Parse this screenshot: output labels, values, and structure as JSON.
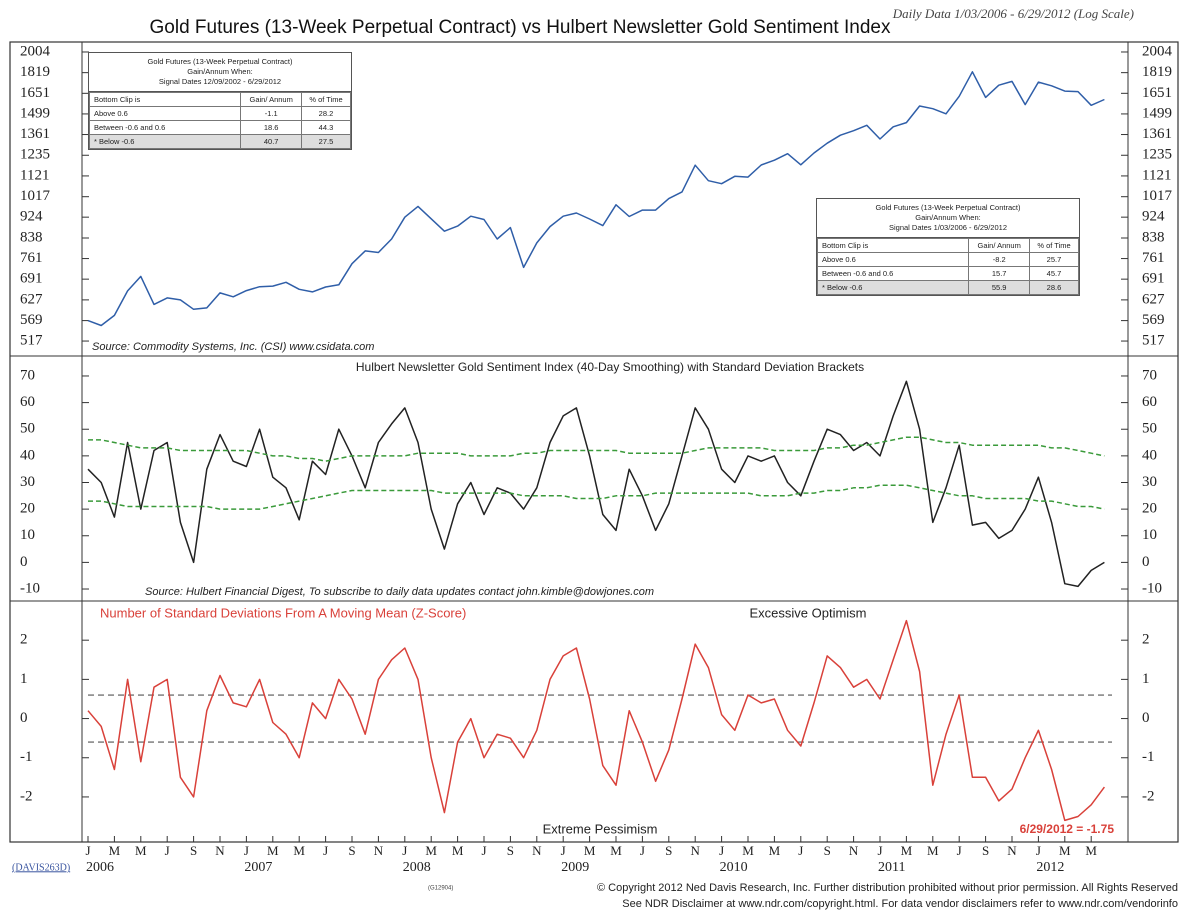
{
  "chart_data": [
    {
      "type": "line",
      "title": "Gold Futures (13-Week Perpetual Contract) vs Hulbert Newsletter Gold Sentiment Index",
      "subtitle": "Daily Data 1/03/2006 - 6/29/2012 (Log Scale)",
      "source": "Source: Commodity Systems, Inc. (CSI) www.csidata.com",
      "log_scale": true,
      "x": [
        "2006-01",
        "2006-02",
        "2006-03",
        "2006-04",
        "2006-05",
        "2006-06",
        "2006-07",
        "2006-08",
        "2006-09",
        "2006-10",
        "2006-11",
        "2006-12",
        "2007-01",
        "2007-02",
        "2007-03",
        "2007-04",
        "2007-05",
        "2007-06",
        "2007-07",
        "2007-08",
        "2007-09",
        "2007-10",
        "2007-11",
        "2007-12",
        "2008-01",
        "2008-02",
        "2008-03",
        "2008-04",
        "2008-05",
        "2008-06",
        "2008-07",
        "2008-08",
        "2008-09",
        "2008-10",
        "2008-11",
        "2008-12",
        "2009-01",
        "2009-02",
        "2009-03",
        "2009-04",
        "2009-05",
        "2009-06",
        "2009-07",
        "2009-08",
        "2009-09",
        "2009-10",
        "2009-11",
        "2009-12",
        "2010-01",
        "2010-02",
        "2010-03",
        "2010-04",
        "2010-05",
        "2010-06",
        "2010-07",
        "2010-08",
        "2010-09",
        "2010-10",
        "2010-11",
        "2010-12",
        "2011-01",
        "2011-02",
        "2011-03",
        "2011-04",
        "2011-05",
        "2011-06",
        "2011-07",
        "2011-08",
        "2011-09",
        "2011-10",
        "2011-11",
        "2011-12",
        "2012-01",
        "2012-02",
        "2012-03",
        "2012-04",
        "2012-05",
        "2012-06"
      ],
      "ylim": [
        482,
        2100
      ],
      "yticks": [
        517,
        569,
        627,
        691,
        761,
        838,
        924,
        1017,
        1121,
        1235,
        1361,
        1499,
        1651,
        1819,
        2004
      ],
      "series": [
        {
          "color": "#2f5ea8",
          "values": [
            569,
            556,
            583,
            654,
            700,
            614,
            633,
            627,
            600,
            604,
            648,
            636,
            655,
            667,
            669,
            681,
            659,
            651,
            666,
            673,
            743,
            789,
            783,
            834,
            924,
            972,
            917,
            865,
            886,
            928,
            914,
            834,
            880,
            730,
            819,
            884,
            928,
            942,
            916,
            888,
            979,
            927,
            955,
            955,
            1008,
            1040,
            1179,
            1096,
            1081,
            1119,
            1115,
            1180,
            1207,
            1244,
            1181,
            1248,
            1307,
            1357,
            1386,
            1421,
            1333,
            1411,
            1439,
            1556,
            1536,
            1500,
            1628,
            1826,
            1620,
            1715,
            1746,
            1566,
            1740,
            1710,
            1668,
            1664,
            1561,
            1604
          ]
        }
      ],
      "tables": [
        {
          "heading": [
            "Gold Futures (13-Week Perpetual Contract)",
            "Gain/Annum When:",
            "Signal Dates 12/09/2002 - 6/29/2012"
          ],
          "columns": [
            "Bottom Clip is",
            "Gain/ Annum",
            "% of Time"
          ],
          "rows": [
            [
              "Above 0.6",
              "-1.1",
              "28.2"
            ],
            [
              "Between -0.6 and 0.6",
              "18.6",
              "44.3"
            ],
            [
              "* Below -0.6",
              "40.7",
              "27.5"
            ]
          ]
        },
        {
          "heading": [
            "Gold Futures (13-Week Perpetual Contract)",
            "Gain/Annum When:",
            "Signal Dates 1/03/2006 - 6/29/2012"
          ],
          "columns": [
            "Bottom Clip is",
            "Gain/ Annum",
            "% of Time"
          ],
          "rows": [
            [
              "Above 0.6",
              "-8.2",
              "25.7"
            ],
            [
              "Between -0.6 and 0.6",
              "15.7",
              "45.7"
            ],
            [
              "* Below -0.6",
              "55.9",
              "28.6"
            ]
          ]
        }
      ]
    },
    {
      "type": "line",
      "title": "Hulbert Newsletter Gold Sentiment Index (40-Day Smoothing) with Standard Deviation Brackets",
      "source": "Source: Hulbert Financial Digest, To subscribe to daily data updates contact john.kimble@dowjones.com",
      "ylim": [
        -14.5,
        77.5
      ],
      "yticks": [
        -10,
        0,
        10,
        20,
        30,
        40,
        50,
        60,
        70
      ],
      "series": [
        {
          "color": "#222222",
          "line_style": "solid",
          "values": [
            35,
            30,
            17,
            45,
            20,
            42,
            45,
            15,
            0,
            35,
            48,
            38,
            36,
            50,
            32,
            28,
            16,
            38,
            33,
            50,
            40,
            28,
            45,
            52,
            58,
            45,
            20,
            5,
            22,
            30,
            18,
            28,
            26,
            20,
            28,
            45,
            55,
            58,
            40,
            18,
            12,
            35,
            25,
            12,
            22,
            40,
            58,
            50,
            35,
            30,
            40,
            38,
            40,
            30,
            25,
            38,
            50,
            48,
            42,
            45,
            40,
            55,
            68,
            50,
            15,
            28,
            44,
            14,
            15,
            9,
            12,
            20,
            32,
            15,
            -8,
            -9,
            -3,
            0
          ]
        },
        {
          "color": "#3a9a3a",
          "line_style": "dashed",
          "values": [
            46,
            46,
            45,
            44,
            43,
            43,
            43,
            42,
            42,
            42,
            42,
            42,
            42,
            41,
            40,
            40,
            39,
            39,
            38,
            39,
            40,
            40,
            40,
            40,
            40,
            41,
            41,
            41,
            41,
            40,
            40,
            40,
            40,
            41,
            41,
            42,
            42,
            42,
            42,
            42,
            42,
            41,
            41,
            41,
            41,
            41,
            42,
            43,
            43,
            43,
            43,
            43,
            42,
            42,
            42,
            42,
            43,
            43,
            44,
            44,
            45,
            46,
            47,
            47,
            46,
            45,
            45,
            44,
            44,
            44,
            44,
            44,
            44,
            43,
            43,
            42,
            41,
            40
          ]
        },
        {
          "color": "#3a9a3a",
          "line_style": "dashed",
          "values": [
            23,
            23,
            22,
            21,
            21,
            21,
            21,
            21,
            21,
            21,
            20,
            20,
            20,
            20,
            21,
            22,
            23,
            24,
            25,
            26,
            27,
            27,
            27,
            27,
            27,
            27,
            27,
            26,
            26,
            26,
            26,
            26,
            26,
            25,
            25,
            25,
            25,
            24,
            24,
            24,
            25,
            25,
            25,
            26,
            26,
            26,
            26,
            26,
            26,
            26,
            26,
            25,
            25,
            25,
            26,
            26,
            27,
            27,
            28,
            28,
            29,
            29,
            29,
            28,
            27,
            26,
            25,
            25,
            24,
            24,
            24,
            24,
            23,
            23,
            22,
            21,
            21,
            20
          ]
        }
      ]
    },
    {
      "type": "line",
      "title": "Number of Standard Deviations From A Moving Mean (Z-Score)",
      "annotations": [
        "Excessive Optimism",
        "Extreme Pessimism",
        "6/29/2012 = -1.75"
      ],
      "reference_lines": [
        0.6,
        -0.6
      ],
      "ylim": [
        -3.15,
        3
      ],
      "yticks": [
        -2,
        -1,
        0,
        1,
        2
      ],
      "series": [
        {
          "color": "#d9413a",
          "values": [
            0.2,
            -0.2,
            -1.3,
            1.0,
            -1.1,
            0.8,
            1.0,
            -1.5,
            -2.0,
            0.2,
            1.1,
            0.4,
            0.3,
            1.0,
            -0.1,
            -0.4,
            -1.0,
            0.4,
            0.0,
            1.0,
            0.5,
            -0.4,
            1.0,
            1.5,
            1.8,
            1.0,
            -1.0,
            -2.4,
            -0.6,
            0.0,
            -1.0,
            -0.4,
            -0.5,
            -1.0,
            -0.3,
            1.0,
            1.6,
            1.8,
            0.5,
            -1.2,
            -1.7,
            0.2,
            -0.6,
            -1.6,
            -0.8,
            0.5,
            1.9,
            1.3,
            0.1,
            -0.3,
            0.6,
            0.4,
            0.5,
            -0.3,
            -0.7,
            0.4,
            1.6,
            1.3,
            0.8,
            1.0,
            0.5,
            1.5,
            2.5,
            1.2,
            -1.7,
            -0.4,
            0.6,
            -1.5,
            -1.5,
            -2.1,
            -1.8,
            -1.0,
            -0.3,
            -1.3,
            -2.6,
            -2.5,
            -2.2,
            -1.75
          ]
        }
      ],
      "xticks": [
        {
          "value": "2006-01",
          "label": "J"
        },
        {
          "value": "2006-03",
          "label": "M"
        },
        {
          "value": "2006-05",
          "label": "M"
        },
        {
          "value": "2006-07",
          "label": "J"
        },
        {
          "value": "2006-09",
          "label": "S"
        },
        {
          "value": "2006-11",
          "label": "N"
        },
        {
          "value": "2007-01",
          "label": "J"
        },
        {
          "value": "2007-03",
          "label": "M"
        },
        {
          "value": "2007-05",
          "label": "M"
        },
        {
          "value": "2007-07",
          "label": "J"
        },
        {
          "value": "2007-09",
          "label": "S"
        },
        {
          "value": "2007-11",
          "label": "N"
        },
        {
          "value": "2008-01",
          "label": "J"
        },
        {
          "value": "2008-03",
          "label": "M"
        },
        {
          "value": "2008-05",
          "label": "M"
        },
        {
          "value": "2008-07",
          "label": "J"
        },
        {
          "value": "2008-09",
          "label": "S"
        },
        {
          "value": "2008-11",
          "label": "N"
        },
        {
          "value": "2009-01",
          "label": "J"
        },
        {
          "value": "2009-03",
          "label": "M"
        },
        {
          "value": "2009-05",
          "label": "M"
        },
        {
          "value": "2009-07",
          "label": "J"
        },
        {
          "value": "2009-09",
          "label": "S"
        },
        {
          "value": "2009-11",
          "label": "N"
        },
        {
          "value": "2010-01",
          "label": "J"
        },
        {
          "value": "2010-03",
          "label": "M"
        },
        {
          "value": "2010-05",
          "label": "M"
        },
        {
          "value": "2010-07",
          "label": "J"
        },
        {
          "value": "2010-09",
          "label": "S"
        },
        {
          "value": "2010-11",
          "label": "N"
        },
        {
          "value": "2011-01",
          "label": "J"
        },
        {
          "value": "2011-03",
          "label": "M"
        },
        {
          "value": "2011-05",
          "label": "M"
        },
        {
          "value": "2011-07",
          "label": "J"
        },
        {
          "value": "2011-09",
          "label": "S"
        },
        {
          "value": "2011-11",
          "label": "N"
        },
        {
          "value": "2012-01",
          "label": "J"
        },
        {
          "value": "2012-03",
          "label": "M"
        },
        {
          "value": "2012-05",
          "label": "M"
        }
      ],
      "year_labels": [
        {
          "value": "2006-01",
          "label": "2006"
        },
        {
          "value": "2007-01",
          "label": "2007"
        },
        {
          "value": "2008-01",
          "label": "2008"
        },
        {
          "value": "2009-01",
          "label": "2009"
        },
        {
          "value": "2010-01",
          "label": "2010"
        },
        {
          "value": "2011-01",
          "label": "2011"
        },
        {
          "value": "2012-01",
          "label": "2012"
        }
      ]
    }
  ],
  "footer": {
    "code": "(DAVIS263D)",
    "ref": "(G12904)",
    "lines": [
      "© Copyright 2012 Ned Davis Research, Inc.  Further distribution prohibited without prior permission.  All Rights Reserved",
      "See NDR Disclaimer at www.ndr.com/copyright.html.  For data vendor disclaimers refer to www.ndr.com/vendorinfo"
    ]
  }
}
